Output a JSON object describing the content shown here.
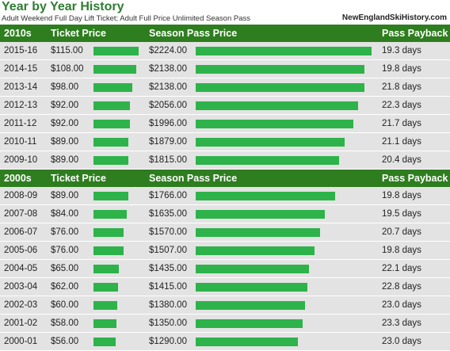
{
  "header": {
    "title": "Year by Year History",
    "subtitle": "Adult Weekend Full Day Lift Ticket; Adult Full Price Unlimited Season Pass",
    "site": "NewEnglandSkiHistory.com"
  },
  "columns": {
    "ticket": "Ticket Price",
    "season": "Season Pass Price",
    "payback": "Pass Payback"
  },
  "colors": {
    "header_bg": "#2e7d1f",
    "bar": "#2db34a",
    "row_bg": "#e3e3e3",
    "title": "#2e7d32"
  },
  "sections": [
    {
      "decade": "2010s",
      "rows": [
        {
          "season": "2015-16",
          "ticket": "$115.00",
          "pass": "$2224.00",
          "payback": "19.3 days",
          "ticket_value": 115,
          "pass_value": 2224
        },
        {
          "season": "2014-15",
          "ticket": "$108.00",
          "pass": "$2138.00",
          "payback": "19.8 days",
          "ticket_value": 108,
          "pass_value": 2138
        },
        {
          "season": "2013-14",
          "ticket": "$98.00",
          "pass": "$2138.00",
          "payback": "21.8 days",
          "ticket_value": 98,
          "pass_value": 2138
        },
        {
          "season": "2012-13",
          "ticket": "$92.00",
          "pass": "$2056.00",
          "payback": "22.3 days",
          "ticket_value": 92,
          "pass_value": 2056
        },
        {
          "season": "2011-12",
          "ticket": "$92.00",
          "pass": "$1996.00",
          "payback": "21.7 days",
          "ticket_value": 92,
          "pass_value": 1996
        },
        {
          "season": "2010-11",
          "ticket": "$89.00",
          "pass": "$1879.00",
          "payback": "21.1 days",
          "ticket_value": 89,
          "pass_value": 1879
        },
        {
          "season": "2009-10",
          "ticket": "$89.00",
          "pass": "$1815.00",
          "payback": "20.4 days",
          "ticket_value": 89,
          "pass_value": 1815
        }
      ]
    },
    {
      "decade": "2000s",
      "rows": [
        {
          "season": "2008-09",
          "ticket": "$89.00",
          "pass": "$1766.00",
          "payback": "19.8 days",
          "ticket_value": 89,
          "pass_value": 1766
        },
        {
          "season": "2007-08",
          "ticket": "$84.00",
          "pass": "$1635.00",
          "payback": "19.5 days",
          "ticket_value": 84,
          "pass_value": 1635
        },
        {
          "season": "2006-07",
          "ticket": "$76.00",
          "pass": "$1570.00",
          "payback": "20.7 days",
          "ticket_value": 76,
          "pass_value": 1570
        },
        {
          "season": "2005-06",
          "ticket": "$76.00",
          "pass": "$1507.00",
          "payback": "19.8 days",
          "ticket_value": 76,
          "pass_value": 1507
        },
        {
          "season": "2004-05",
          "ticket": "$65.00",
          "pass": "$1435.00",
          "payback": "22.1 days",
          "ticket_value": 65,
          "pass_value": 1435
        },
        {
          "season": "2003-04",
          "ticket": "$62.00",
          "pass": "$1415.00",
          "payback": "22.8 days",
          "ticket_value": 62,
          "pass_value": 1415
        },
        {
          "season": "2002-03",
          "ticket": "$60.00",
          "pass": "$1380.00",
          "payback": "23.0 days",
          "ticket_value": 60,
          "pass_value": 1380
        },
        {
          "season": "2001-02",
          "ticket": "$58.00",
          "pass": "$1350.00",
          "payback": "23.3 days",
          "ticket_value": 58,
          "pass_value": 1350
        },
        {
          "season": "2000-01",
          "ticket": "$56.00",
          "pass": "$1290.00",
          "payback": "23.0 days",
          "ticket_value": 56,
          "pass_value": 1290
        }
      ]
    }
  ]
}
